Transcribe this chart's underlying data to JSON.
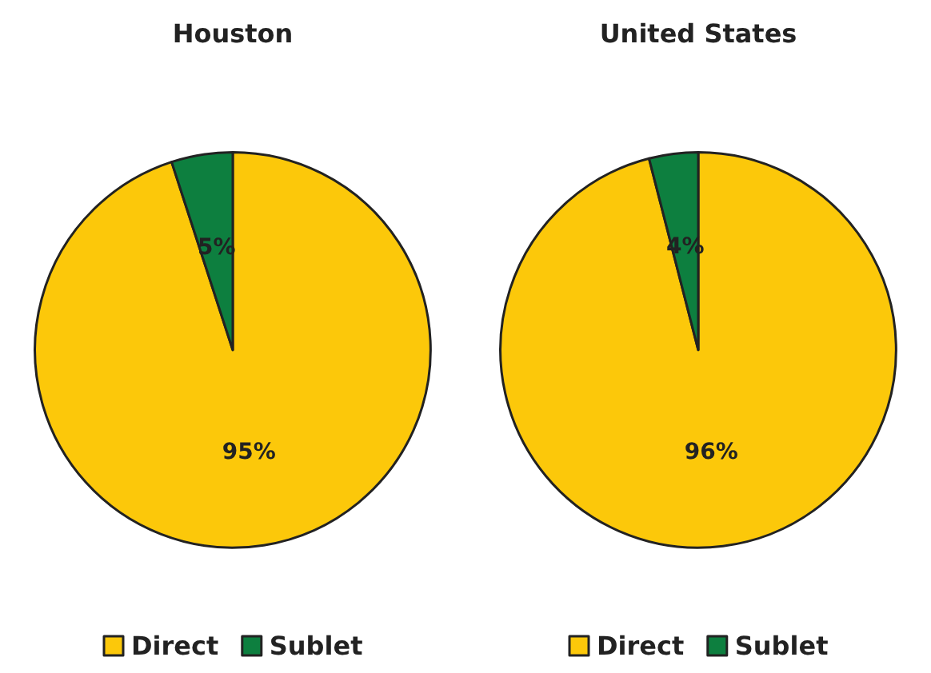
{
  "chart_data": [
    {
      "type": "pie",
      "title": "Houston",
      "categories": [
        "Direct",
        "Sublet"
      ],
      "values": [
        95,
        5
      ],
      "colors": [
        "#fcc80a",
        "#0d7f3f"
      ],
      "value_labels": [
        "95%",
        "5%"
      ],
      "legend": "bottom"
    },
    {
      "type": "pie",
      "title": "United States",
      "categories": [
        "Direct",
        "Sublet"
      ],
      "values": [
        96,
        4
      ],
      "colors": [
        "#fcc80a",
        "#0d7f3f"
      ],
      "value_labels": [
        "96%",
        "4%"
      ],
      "legend": "bottom"
    }
  ]
}
